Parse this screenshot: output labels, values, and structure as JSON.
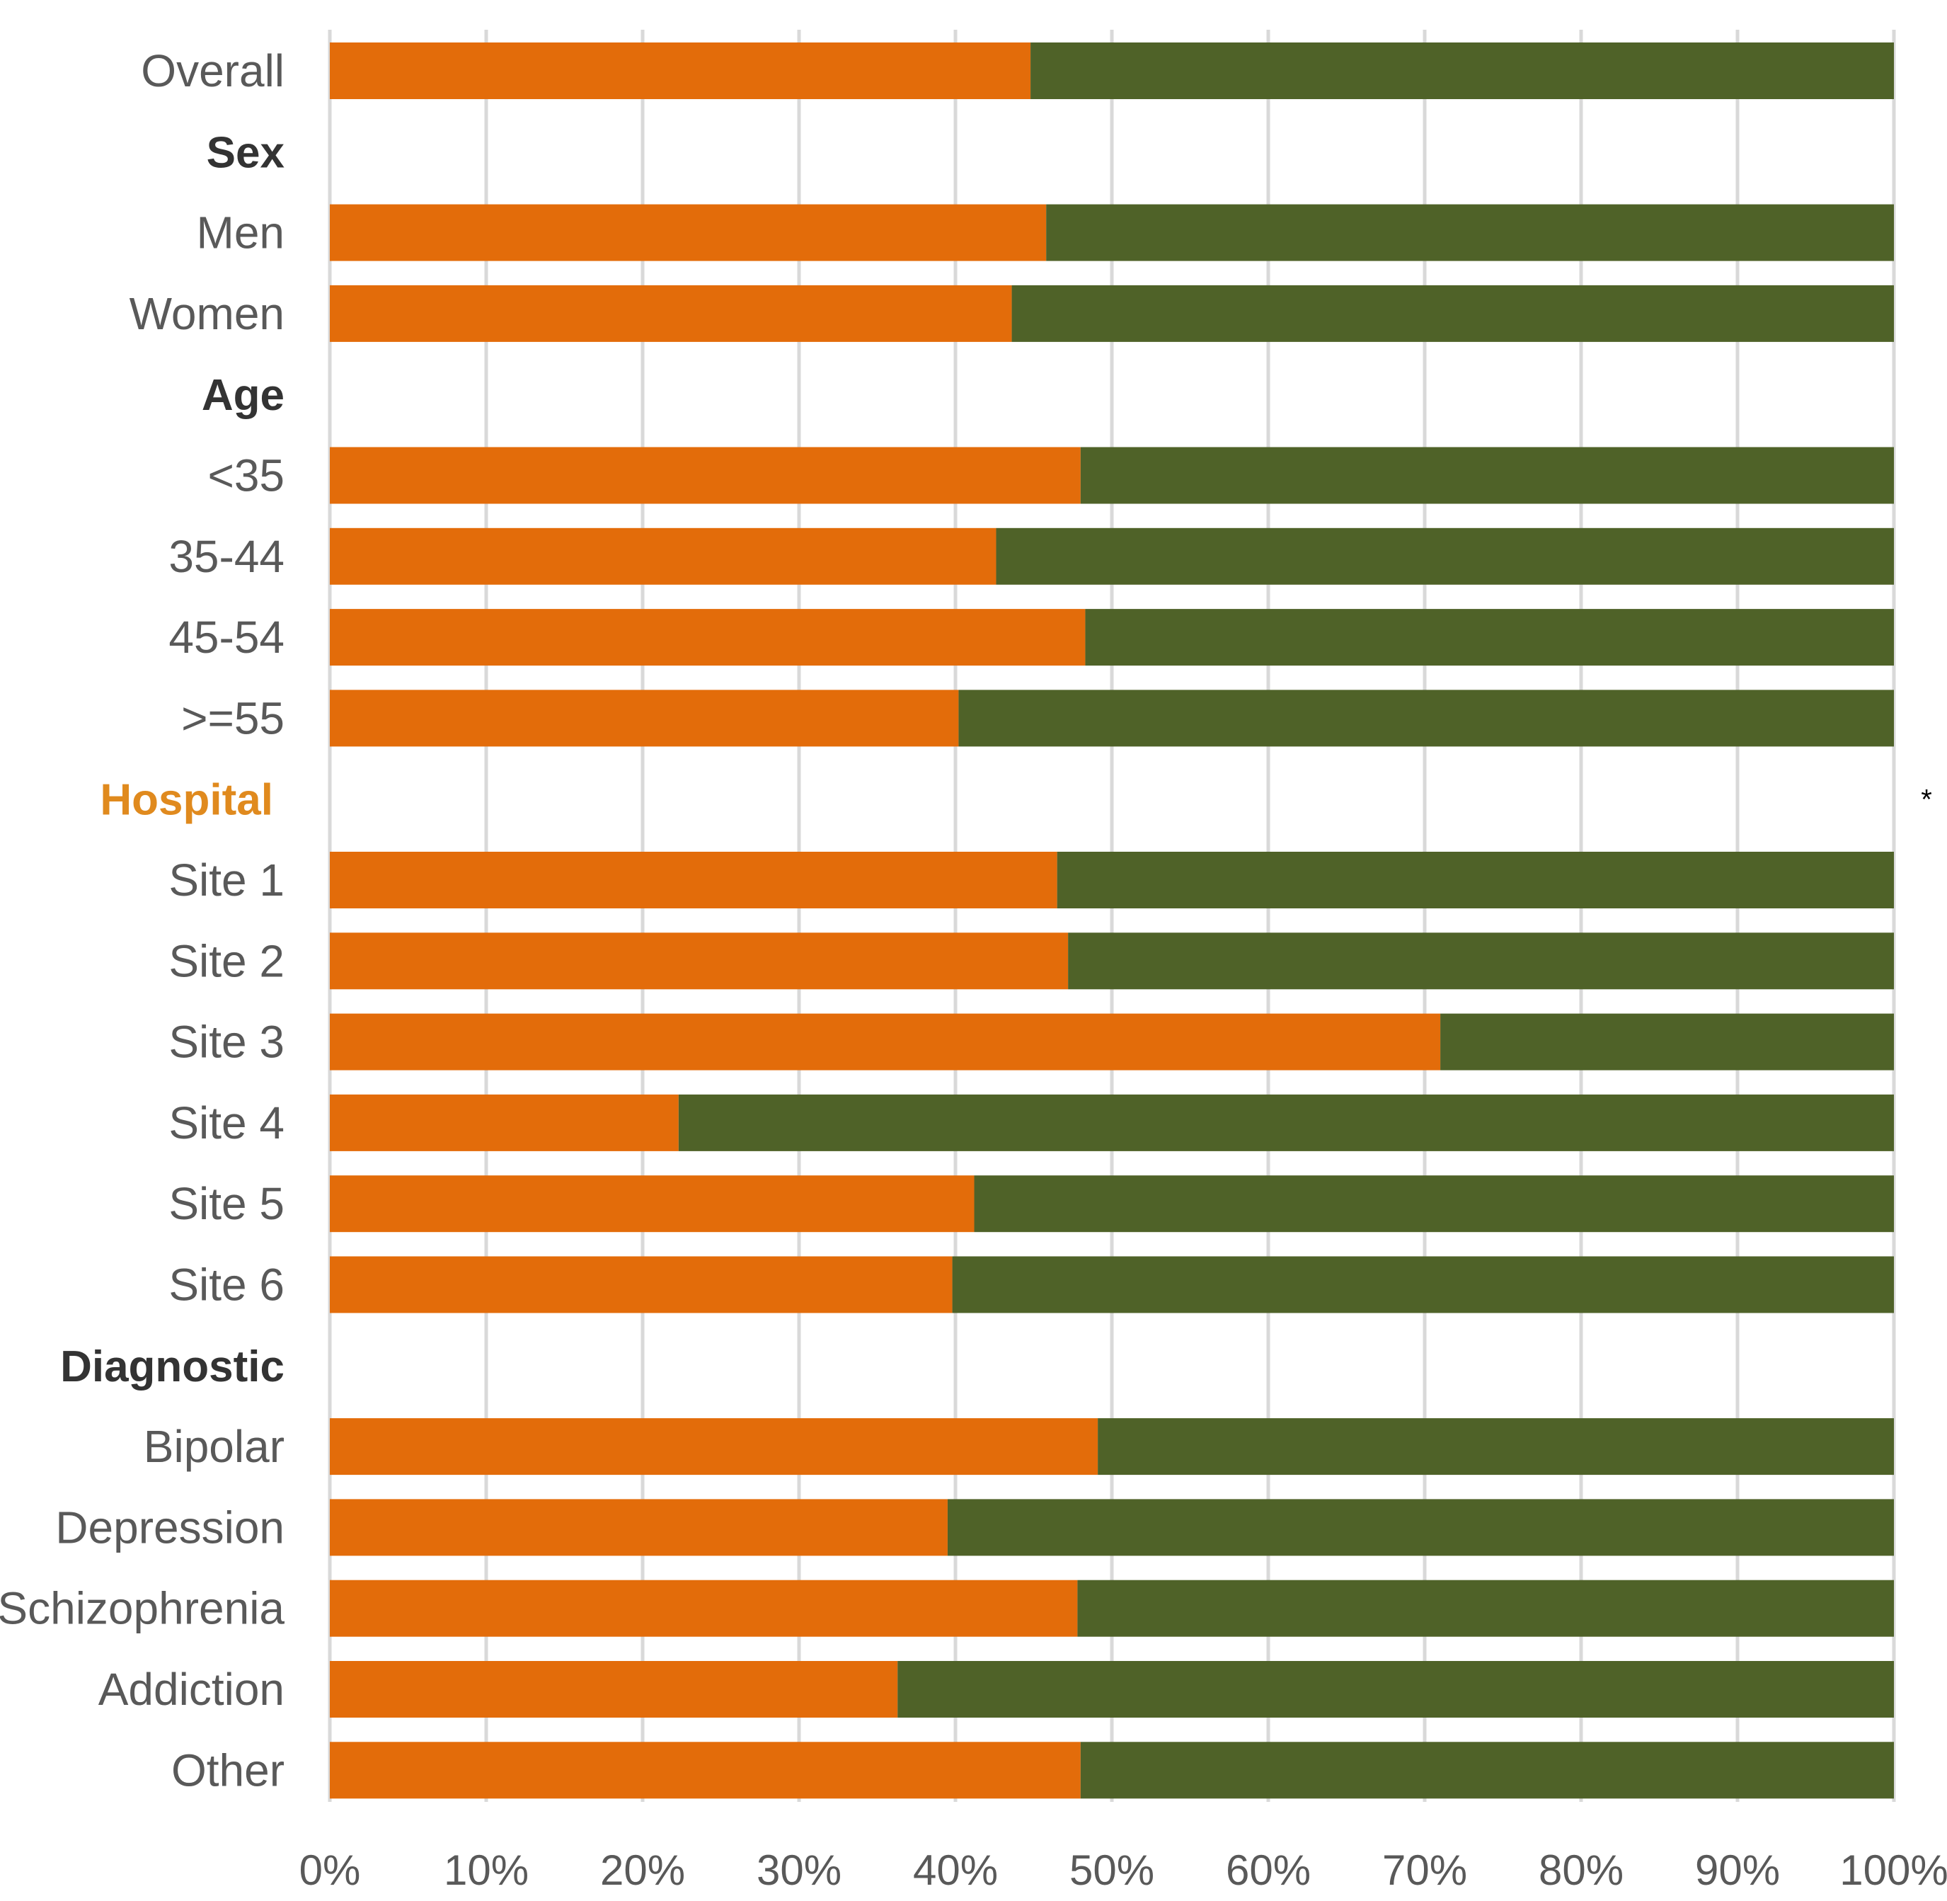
{
  "chart_data": {
    "type": "bar",
    "orientation": "horizontal",
    "stacked": true,
    "percent": true,
    "xlim": [
      0,
      100
    ],
    "x_ticks": [
      "0%",
      "10%",
      "20%",
      "30%",
      "40%",
      "50%",
      "60%",
      "70%",
      "80%",
      "90%",
      "100%"
    ],
    "grid": true,
    "legend": "none",
    "colors": {
      "series_1": "#E36C0A",
      "series_2": "#4F6228",
      "grid": "#D9D9D9",
      "hospital_heading": "#E08A1E",
      "heading": "#333333"
    },
    "series": [
      {
        "color": "#E36C0A"
      },
      {
        "color": "#4F6228"
      }
    ],
    "rows": [
      {
        "label": "Overall",
        "kind": "bar",
        "value": 44.8
      },
      {
        "label": "Sex",
        "kind": "heading"
      },
      {
        "label": "Men",
        "kind": "bar",
        "value": 45.8
      },
      {
        "label": "Women",
        "kind": "bar",
        "value": 43.6
      },
      {
        "label": "Age",
        "kind": "heading"
      },
      {
        "label": "<35",
        "kind": "bar",
        "value": 48.0
      },
      {
        "label": "35-44",
        "kind": "bar",
        "value": 42.6
      },
      {
        "label": "45-54",
        "kind": "bar",
        "value": 48.3
      },
      {
        "label": ">=55",
        "kind": "bar",
        "value": 40.2
      },
      {
        "label": "Hospital",
        "kind": "heading",
        "highlight": true,
        "note": "*"
      },
      {
        "label": "Site 1",
        "kind": "bar",
        "value": 46.5
      },
      {
        "label": "Site 2",
        "kind": "bar",
        "value": 47.2
      },
      {
        "label": "Site 3",
        "kind": "bar",
        "value": 71.0
      },
      {
        "label": "Site 4",
        "kind": "bar",
        "value": 22.3
      },
      {
        "label": "Site 5",
        "kind": "bar",
        "value": 41.2
      },
      {
        "label": "Site 6",
        "kind": "bar",
        "value": 39.8
      },
      {
        "label": "Diagnostic",
        "kind": "heading"
      },
      {
        "label": "Bipolar",
        "kind": "bar",
        "value": 49.1
      },
      {
        "label": "Depression",
        "kind": "bar",
        "value": 39.5
      },
      {
        "label": "Schizophrenia",
        "kind": "bar",
        "value": 47.8
      },
      {
        "label": "Addiction",
        "kind": "bar",
        "value": 36.3
      },
      {
        "label": "Other",
        "kind": "bar",
        "value": 48.0
      }
    ]
  }
}
